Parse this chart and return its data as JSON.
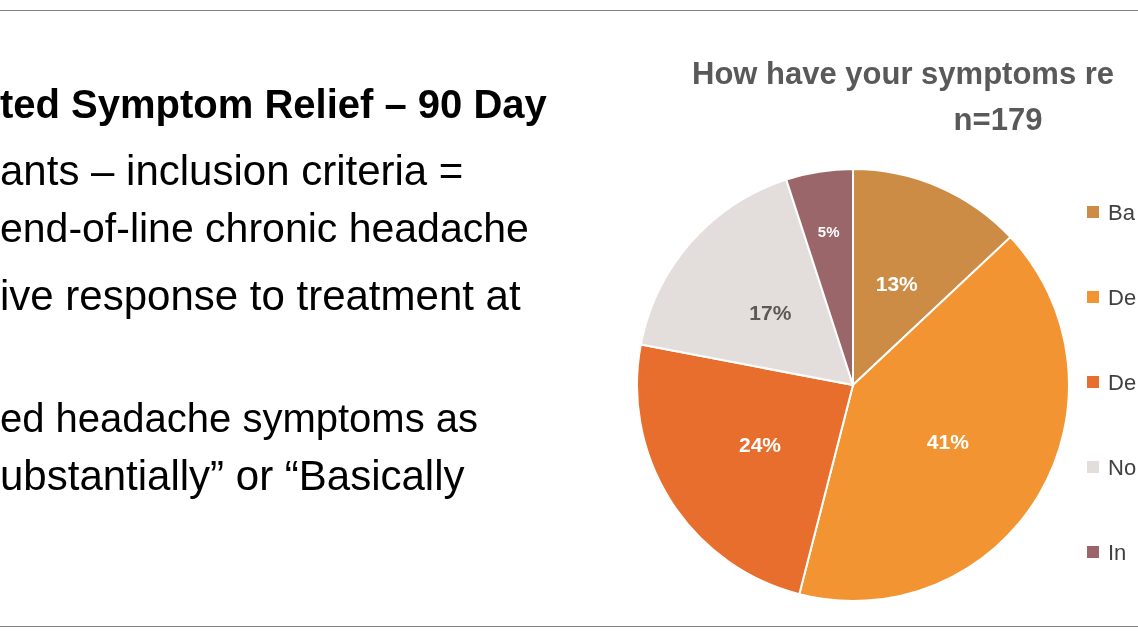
{
  "chart_data": {
    "type": "pie",
    "title": "How have your symptoms re",
    "subtitle": "n=179",
    "categories": [
      "Ba",
      "De",
      "De",
      "No",
      "In"
    ],
    "values": [
      13,
      41,
      24,
      17,
      5
    ],
    "value_labels": [
      "13%",
      "41%",
      "24%",
      "17%",
      "5%"
    ],
    "colors": [
      "#cc8c45",
      "#f39433",
      "#e86e2e",
      "#e3dedb",
      "#9b6669"
    ],
    "legend": "right",
    "annotations": [
      "ted Symptom Relief – 90 Day",
      "ants – inclusion criteria =",
      "end-of-line chronic headache",
      "ive response to treatment at",
      "ed headache symptoms as",
      "ubstantially” or “Basically"
    ]
  }
}
